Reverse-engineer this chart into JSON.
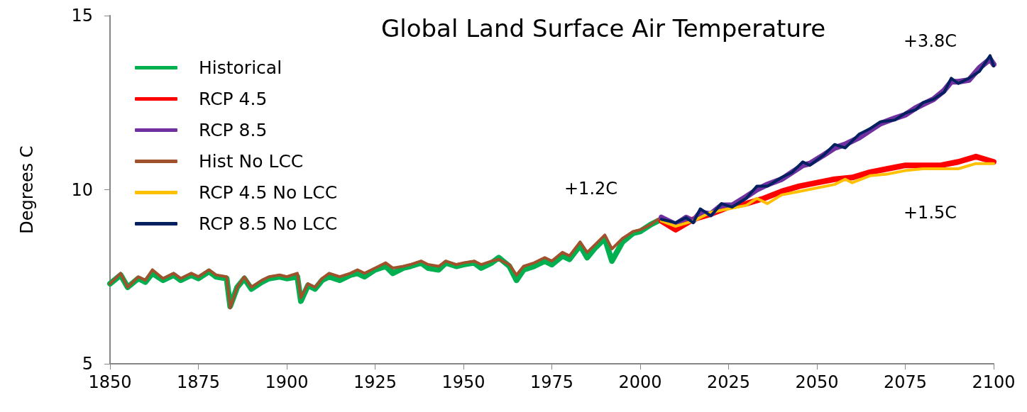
{
  "chart_data": {
    "type": "line",
    "title": "Global Land Surface Air Temperature",
    "ylabel": "Degrees C",
    "xlim": [
      1850,
      2100
    ],
    "xticks": [
      1850,
      1875,
      1900,
      1925,
      1950,
      1975,
      2000,
      2025,
      2050,
      2075,
      2100
    ],
    "ylim": [
      5,
      15
    ],
    "yticks": [
      5,
      10,
      15
    ],
    "grid": false,
    "legend": "top left",
    "marker": "none",
    "line_style": "solid",
    "annotations": [
      "+1.2C",
      "+3.8C",
      "+1.5C"
    ],
    "series": [
      {
        "name": "Historical",
        "color": "#00b050",
        "x": [
          1850,
          1853,
          1855,
          1858,
          1860,
          1862,
          1865,
          1868,
          1870,
          1873,
          1875,
          1878,
          1880,
          1883,
          1884,
          1886,
          1888,
          1890,
          1893,
          1895,
          1898,
          1900,
          1903,
          1904,
          1906,
          1908,
          1910,
          1912,
          1915,
          1918,
          1920,
          1922,
          1925,
          1928,
          1930,
          1933,
          1935,
          1938,
          1940,
          1943,
          1945,
          1948,
          1950,
          1953,
          1955,
          1958,
          1960,
          1963,
          1965,
          1967,
          1970,
          1973,
          1975,
          1978,
          1980,
          1983,
          1985,
          1987,
          1990,
          1992,
          1995,
          1998,
          2000,
          2003,
          2005
        ],
        "values": [
          7.3,
          7.55,
          7.2,
          7.45,
          7.35,
          7.6,
          7.4,
          7.55,
          7.4,
          7.55,
          7.45,
          7.65,
          7.5,
          7.45,
          6.65,
          7.2,
          7.45,
          7.15,
          7.35,
          7.45,
          7.5,
          7.45,
          7.5,
          6.8,
          7.25,
          7.15,
          7.4,
          7.5,
          7.4,
          7.55,
          7.6,
          7.5,
          7.7,
          7.8,
          7.6,
          7.75,
          7.8,
          7.9,
          7.75,
          7.7,
          7.9,
          7.8,
          7.85,
          7.9,
          7.75,
          7.9,
          8.05,
          7.8,
          7.4,
          7.7,
          7.8,
          7.95,
          7.85,
          8.1,
          8.0,
          8.4,
          8.05,
          8.3,
          8.6,
          7.95,
          8.5,
          8.75,
          8.8,
          9.0,
          9.1
        ]
      },
      {
        "name": "RCP 4.5",
        "color": "#ff0000",
        "x": [
          2006,
          2010,
          2015,
          2020,
          2025,
          2030,
          2035,
          2040,
          2045,
          2050,
          2055,
          2060,
          2065,
          2070,
          2075,
          2080,
          2085,
          2090,
          2095,
          2100
        ],
        "values": [
          9.1,
          8.85,
          9.15,
          9.3,
          9.5,
          9.6,
          9.75,
          9.95,
          10.1,
          10.2,
          10.3,
          10.35,
          10.5,
          10.6,
          10.7,
          10.7,
          10.7,
          10.8,
          10.95,
          10.8
        ]
      },
      {
        "name": "RCP 8.5",
        "color": "#7030a0",
        "x": [
          2006,
          2010,
          2013,
          2015,
          2017,
          2020,
          2023,
          2026,
          2030,
          2033,
          2036,
          2040,
          2043,
          2046,
          2048,
          2052,
          2055,
          2058,
          2062,
          2065,
          2068,
          2072,
          2075,
          2078,
          2080,
          2083,
          2086,
          2088,
          2090,
          2093,
          2096,
          2099,
          2100
        ],
        "values": [
          9.2,
          9.0,
          9.2,
          9.1,
          9.35,
          9.3,
          9.55,
          9.55,
          9.8,
          10.0,
          10.15,
          10.3,
          10.5,
          10.7,
          10.75,
          11.0,
          11.2,
          11.3,
          11.5,
          11.7,
          11.9,
          12.05,
          12.15,
          12.35,
          12.45,
          12.6,
          12.85,
          13.1,
          13.1,
          13.15,
          13.5,
          13.75,
          13.6
        ]
      },
      {
        "name": "Hist No LCC",
        "color": "#a0522d",
        "x": [
          1850,
          1853,
          1855,
          1858,
          1860,
          1862,
          1865,
          1868,
          1870,
          1873,
          1875,
          1878,
          1880,
          1883,
          1884,
          1886,
          1888,
          1890,
          1893,
          1895,
          1898,
          1900,
          1903,
          1904,
          1906,
          1908,
          1910,
          1912,
          1915,
          1918,
          1920,
          1922,
          1925,
          1928,
          1930,
          1933,
          1935,
          1938,
          1940,
          1943,
          1945,
          1948,
          1950,
          1953,
          1955,
          1958,
          1960,
          1963,
          1965,
          1967,
          1970,
          1973,
          1975,
          1978,
          1980,
          1983,
          1985,
          1987,
          1990,
          1992,
          1995,
          1998,
          2000,
          2003,
          2005
        ],
        "values": [
          7.3,
          7.6,
          7.2,
          7.5,
          7.4,
          7.7,
          7.45,
          7.6,
          7.45,
          7.6,
          7.5,
          7.7,
          7.55,
          7.5,
          6.6,
          7.2,
          7.5,
          7.2,
          7.4,
          7.5,
          7.55,
          7.5,
          7.6,
          6.9,
          7.3,
          7.2,
          7.45,
          7.6,
          7.5,
          7.6,
          7.7,
          7.6,
          7.75,
          7.9,
          7.75,
          7.8,
          7.85,
          7.95,
          7.85,
          7.8,
          7.95,
          7.85,
          7.9,
          7.95,
          7.85,
          7.95,
          8.0,
          7.85,
          7.55,
          7.8,
          7.9,
          8.05,
          7.95,
          8.2,
          8.1,
          8.5,
          8.2,
          8.4,
          8.7,
          8.3,
          8.6,
          8.8,
          8.85,
          9.0,
          9.15
        ]
      },
      {
        "name": "RCP 4.5 No LCC",
        "color": "#ffc000",
        "x": [
          2006,
          2010,
          2015,
          2020,
          2025,
          2030,
          2033,
          2036,
          2040,
          2045,
          2050,
          2055,
          2058,
          2060,
          2065,
          2070,
          2075,
          2080,
          2085,
          2090,
          2095,
          2100
        ],
        "values": [
          9.1,
          8.95,
          9.1,
          9.35,
          9.45,
          9.55,
          9.75,
          9.6,
          9.85,
          9.95,
          10.05,
          10.15,
          10.3,
          10.2,
          10.4,
          10.45,
          10.55,
          10.6,
          10.6,
          10.6,
          10.75,
          10.75
        ]
      },
      {
        "name": "RCP 8.5 No LCC",
        "color": "#002060",
        "x": [
          2006,
          2010,
          2013,
          2015,
          2017,
          2020,
          2023,
          2026,
          2030,
          2033,
          2036,
          2040,
          2043,
          2046,
          2048,
          2052,
          2055,
          2058,
          2062,
          2065,
          2068,
          2072,
          2075,
          2078,
          2080,
          2083,
          2086,
          2088,
          2090,
          2093,
          2096,
          2099,
          2100
        ],
        "values": [
          9.15,
          9.05,
          9.2,
          9.05,
          9.45,
          9.25,
          9.6,
          9.5,
          9.75,
          10.1,
          10.1,
          10.35,
          10.5,
          10.8,
          10.7,
          11.0,
          11.3,
          11.2,
          11.6,
          11.75,
          11.95,
          12.0,
          12.2,
          12.3,
          12.5,
          12.6,
          12.8,
          13.2,
          13.05,
          13.2,
          13.4,
          13.85,
          13.55
        ]
      }
    ]
  }
}
